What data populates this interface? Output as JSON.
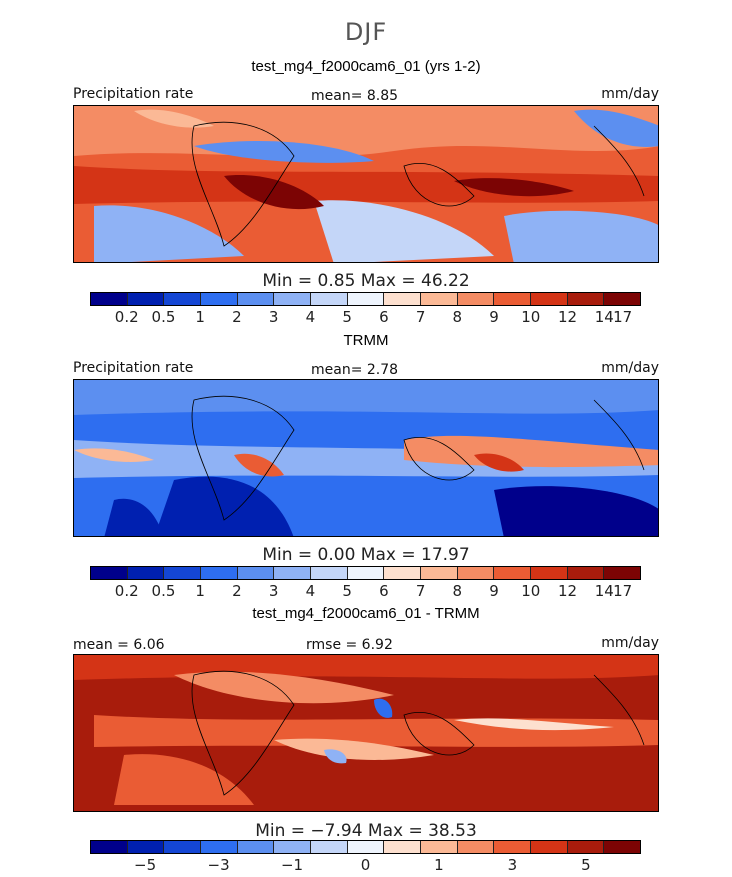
{
  "figure": {
    "season": "DJF",
    "colors": [
      "#00008b",
      "#0020b0",
      "#1446d4",
      "#2e6ef0",
      "#5c8ff0",
      "#8fb2f5",
      "#c4d6f8",
      "#eef4fd",
      "#fde0cf",
      "#fbb996",
      "#f48c64",
      "#ea5c34",
      "#d43416",
      "#a81c0c",
      "#7c0404"
    ]
  },
  "chart_data": [
    {
      "type": "heatmap",
      "title": "test_mg4_f2000cam6_01 (yrs 1-2)",
      "variable_label": "Precipitation rate",
      "units": "mm/day",
      "mean_text": "mean=   8.85",
      "min_max_text": "Min =    0.85 Max =   46.22",
      "colorbar_levels": [
        "0.2",
        "0.5",
        "1",
        "2",
        "3",
        "4",
        "5",
        "6",
        "7",
        "8",
        "9",
        "10",
        "12",
        "14",
        "17"
      ],
      "min": 0.85,
      "max": 46.22,
      "mean": 8.85
    },
    {
      "type": "heatmap",
      "title": "TRMM",
      "variable_label": "Precipitation rate",
      "units": "mm/day",
      "mean_text": "mean=   2.78",
      "min_max_text": "Min =    0.00 Max =   17.97",
      "colorbar_levels": [
        "0.2",
        "0.5",
        "1",
        "2",
        "3",
        "4",
        "5",
        "6",
        "7",
        "8",
        "9",
        "10",
        "12",
        "14",
        "17"
      ],
      "min": 0.0,
      "max": 17.97,
      "mean": 2.78
    },
    {
      "type": "heatmap",
      "title": "test_mg4_f2000cam6_01 - TRMM",
      "units": "mm/day",
      "mean_text": "mean =    6.06",
      "rmse_text": "rmse =    6.92",
      "min_max_text": "Min =   −7.94 Max =   38.53",
      "colorbar_levels": [
        "−5",
        "−3",
        "−1",
        "0",
        "1",
        "3",
        "5"
      ],
      "min": -7.94,
      "max": 38.53,
      "mean": 6.06,
      "rmse": 6.92
    }
  ]
}
